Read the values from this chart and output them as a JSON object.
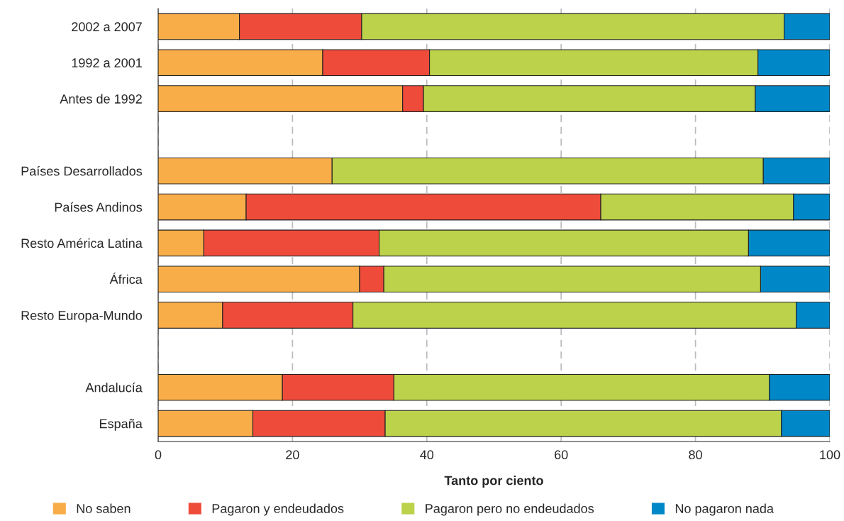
{
  "chart_data": {
    "type": "bar",
    "orientation": "horizontal",
    "stacked": true,
    "categories": [
      "2002 a 2007",
      "1992 a 2001",
      "Antes de 1992",
      null,
      "Países Desarrollados",
      "Países Andinos",
      "Resto América Latina",
      "África",
      "Resto Europa-Mundo",
      null,
      "Andalucía",
      "España"
    ],
    "series": [
      {
        "name": "No saben",
        "color": "#f9ad48",
        "values": [
          12.1,
          24.5,
          36.4,
          null,
          25.9,
          13.1,
          6.8,
          30.0,
          9.6,
          null,
          18.5,
          14.1
        ]
      },
      {
        "name": "Pagaron y endeudados",
        "color": "#ef4b3b",
        "values": [
          18.2,
          15.9,
          3.1,
          null,
          null,
          52.8,
          26.1,
          3.6,
          19.4,
          null,
          16.6,
          19.7
        ]
      },
      {
        "name": "Pagaron pero no endeudados",
        "color": "#bcd24a",
        "values": [
          62.9,
          48.9,
          49.4,
          null,
          64.2,
          28.7,
          55.0,
          56.1,
          66.0,
          null,
          55.9,
          59.0
        ]
      },
      {
        "name": "No pagaron nada",
        "color": "#0087c8",
        "values": [
          6.8,
          10.7,
          11.1,
          null,
          9.9,
          5.4,
          12.1,
          10.3,
          5.0,
          null,
          9.0,
          7.2
        ]
      }
    ],
    "xlabel": "Tanto por ciento",
    "xlim": [
      0,
      100
    ],
    "xticks": [
      0,
      20,
      40,
      60,
      80,
      100
    ],
    "grid": "x",
    "legend": "bottom"
  }
}
